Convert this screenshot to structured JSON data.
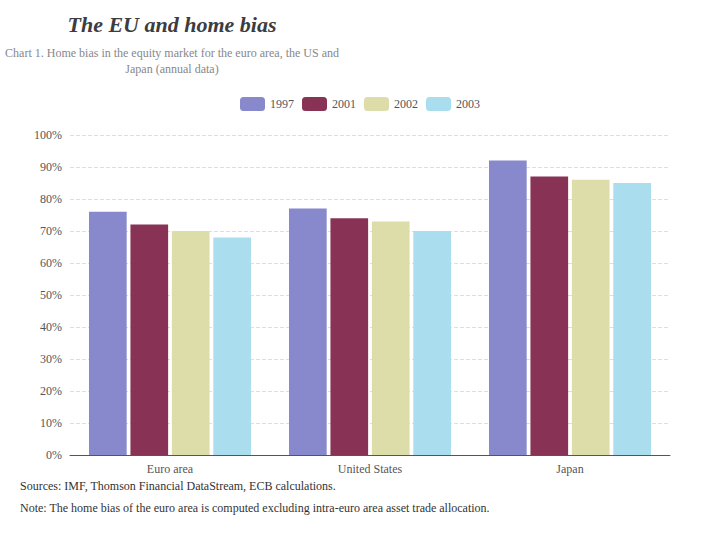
{
  "chart_data": {
    "type": "bar",
    "title": "The EU and home bias",
    "subtitle": "Chart 1. Home bias in the equity market for the euro area, the US and\nJapan (annual data)",
    "annotations": [
      "Sources: IMF, Thomson Financial DataStream, ECB calculations.",
      "Note: The home bias of the euro area is computed excluding intra-euro area asset trade allocation."
    ],
    "categories": [
      "Euro area",
      "United States",
      "Japan"
    ],
    "series": [
      {
        "name": "1997",
        "color": "#8888cc",
        "values": [
          76,
          77,
          92
        ]
      },
      {
        "name": "2001",
        "color": "#883355",
        "values": [
          72,
          74,
          87
        ]
      },
      {
        "name": "2002",
        "color": "#ddddaa",
        "values": [
          70,
          73,
          86
        ]
      },
      {
        "name": "2003",
        "color": "#aaddee",
        "values": [
          68,
          70,
          85
        ]
      }
    ],
    "ylim": [
      0,
      100
    ],
    "yticks": [
      {
        "value": 0,
        "label": "0%"
      },
      {
        "value": 10,
        "label": "10%"
      },
      {
        "value": 20,
        "label": "20%"
      },
      {
        "value": 30,
        "label": "30%"
      },
      {
        "value": 40,
        "label": "40%"
      },
      {
        "value": 50,
        "label": "50%"
      },
      {
        "value": 60,
        "label": "60%"
      },
      {
        "value": 70,
        "label": "70%"
      },
      {
        "value": 80,
        "label": "80%"
      },
      {
        "value": 90,
        "label": "90%"
      },
      {
        "value": 100,
        "label": "100%"
      }
    ],
    "grid": true,
    "legend": "top"
  }
}
